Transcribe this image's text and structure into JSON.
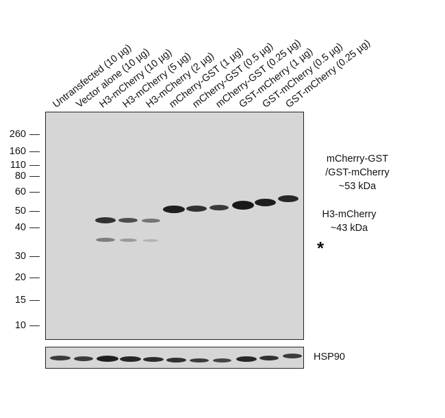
{
  "lanes": [
    "Untransfected (10 µg)",
    "Vector alone (10 µg)",
    "H3-mCherry (10 µg)",
    "H3-mCherry (5 µg)",
    "H3-mCherry (2 µg)",
    "mCherry-GST (1 µg)",
    "mCherry-GST (0.5 µg)",
    "mCherry-GST (0.25 µg)",
    "GST-mCherry (1 µg)",
    "GST-mCherry (0.5 µg)",
    "GST-mCherry (0.25 µg)"
  ],
  "markers": [
    "260",
    "160",
    "110",
    "80",
    "60",
    "50",
    "40",
    "30",
    "20",
    "15",
    "10"
  ],
  "annotations": {
    "gst_line1": "mCherry-GST",
    "gst_line2": "/GST-mCherry",
    "gst_line3": "~53 kDa",
    "h3_line1": "H3-mCherry",
    "h3_line2": "~43 kDa",
    "nonspecific": "*"
  },
  "loading_control": "HSP90",
  "colors": {
    "membrane": "#d6d6d6",
    "band": "#141414"
  }
}
